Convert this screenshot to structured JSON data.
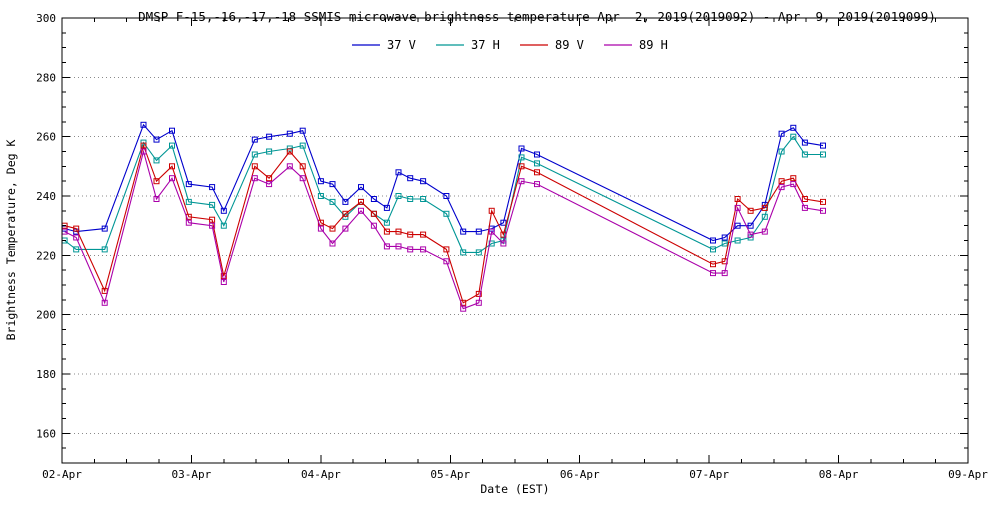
{
  "chart_data": {
    "type": "line",
    "title": "DMSP F-15,-16,-17,-18 SSMIS microwave brightness temperature Apr  2, 2019(2019092) - Apr  9, 2019(2019099)",
    "xlabel": "Date (EST)",
    "ylabel": "Brightness Temperature, Deg K",
    "legend_position": "top-center",
    "grid": "horizontal-dotted",
    "marker": "open-square",
    "xlim": [
      0,
      7
    ],
    "ylim": [
      150,
      300
    ],
    "x_tick_values": [
      0,
      1,
      2,
      3,
      4,
      5,
      6,
      7
    ],
    "x_tick_labels": [
      "02-Apr",
      "03-Apr",
      "04-Apr",
      "05-Apr",
      "06-Apr",
      "07-Apr",
      "08-Apr",
      "09-Apr"
    ],
    "y_ticks": [
      160,
      180,
      200,
      220,
      240,
      260,
      280,
      300
    ],
    "x_units": "days since 02-Apr 2019 (EST)",
    "x": [
      0.02,
      0.11,
      0.33,
      0.63,
      0.73,
      0.85,
      0.98,
      1.16,
      1.25,
      1.49,
      1.6,
      1.76,
      1.86,
      2.0,
      2.09,
      2.19,
      2.31,
      2.41,
      2.51,
      2.6,
      2.69,
      2.79,
      2.97,
      3.1,
      3.22,
      3.32,
      3.41,
      3.55,
      3.67,
      5.03,
      5.12,
      5.22,
      5.32,
      5.43,
      5.56,
      5.65,
      5.74,
      5.88
    ],
    "series": [
      {
        "name": "37 V",
        "color": "#0000cc",
        "values": [
          229,
          228,
          229,
          264,
          259,
          262,
          244,
          243,
          235,
          259,
          260,
          261,
          262,
          245,
          244,
          238,
          243,
          239,
          236,
          248,
          246,
          245,
          240,
          228,
          228,
          229,
          231,
          256,
          254,
          225,
          226,
          230,
          230,
          237,
          261,
          263,
          258,
          257
        ]
      },
      {
        "name": "37 H",
        "color": "#009695",
        "values": [
          225,
          222,
          222,
          258,
          252,
          257,
          238,
          237,
          230,
          254,
          255,
          256,
          257,
          240,
          238,
          233,
          238,
          234,
          231,
          240,
          239,
          239,
          234,
          221,
          221,
          224,
          225,
          253,
          251,
          222,
          224,
          225,
          226,
          233,
          255,
          260,
          254,
          254
        ]
      },
      {
        "name": "89 V",
        "color": "#cc0000",
        "values": [
          230,
          229,
          208,
          257,
          245,
          250,
          233,
          232,
          213,
          250,
          246,
          255,
          250,
          231,
          229,
          234,
          238,
          234,
          228,
          228,
          227,
          227,
          222,
          204,
          207,
          235,
          227,
          250,
          248,
          217,
          218,
          239,
          235,
          236,
          245,
          246,
          239,
          238
        ]
      },
      {
        "name": "89 H",
        "color": "#aa00aa",
        "values": [
          228,
          226,
          204,
          255,
          239,
          246,
          231,
          230,
          211,
          246,
          244,
          250,
          246,
          229,
          224,
          229,
          235,
          230,
          223,
          223,
          222,
          222,
          218,
          202,
          204,
          228,
          224,
          245,
          244,
          214,
          214,
          236,
          227,
          228,
          243,
          244,
          236,
          235
        ]
      }
    ]
  }
}
